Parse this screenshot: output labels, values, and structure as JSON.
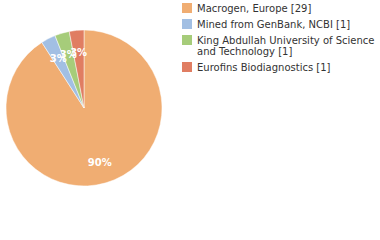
{
  "chart_data": {
    "type": "pie",
    "categories": [
      "Macrogen, Europe [29]",
      "Mined from GenBank, NCBI [1]",
      "King Abdullah University of Science and Technology [1]",
      "Eurofins Biodiagnostics [1]"
    ],
    "values": [
      90,
      3,
      3,
      3
    ],
    "value_labels": [
      "90%",
      "3%",
      "3%",
      "3%"
    ],
    "colors": [
      "#f0ad72",
      "#a2bfe3",
      "#a6cc7a",
      "#e07d62"
    ],
    "data_labels": true,
    "legend": "top-right"
  }
}
